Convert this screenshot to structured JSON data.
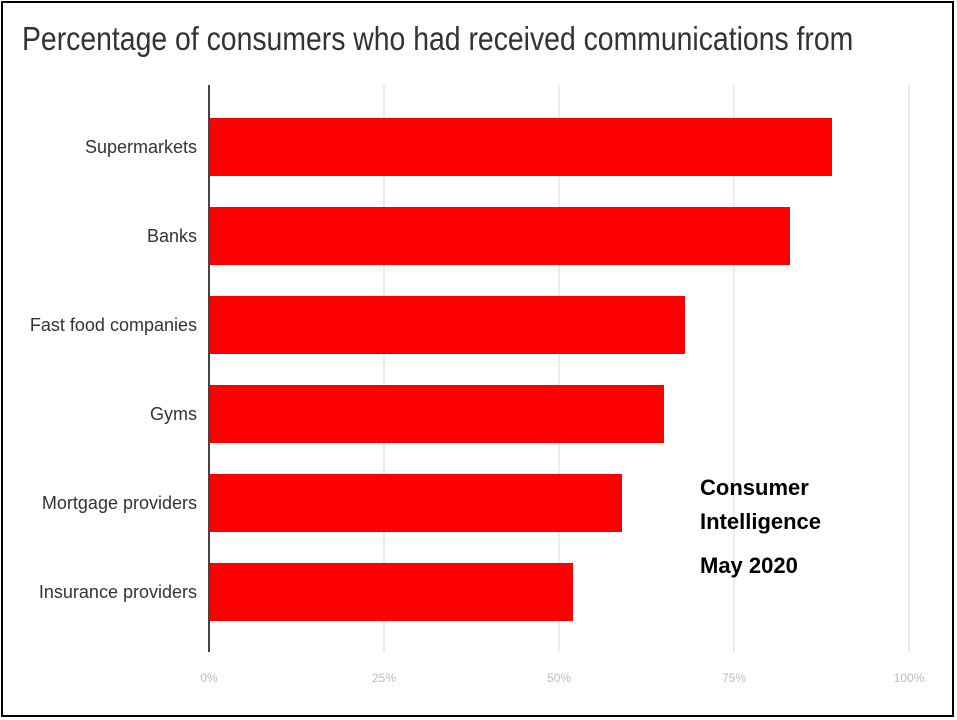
{
  "title": "Percentage of consumers who had received communications from",
  "annotation": {
    "line1": "Consumer",
    "line2": "Intelligence",
    "line3": "May 2020"
  },
  "colors": {
    "bar": "#ff0000",
    "grid": "#d9d9d9",
    "axis": "#444444"
  },
  "chart_data": {
    "type": "bar",
    "orientation": "horizontal",
    "title": "Percentage of consumers who had received communications from",
    "categories": [
      "Supermarkets",
      "Banks",
      "Fast food companies",
      "Gyms",
      "Mortgage providers",
      "Insurance providers"
    ],
    "values": [
      89,
      83,
      68,
      65,
      59,
      52
    ],
    "unit": "%",
    "xlim": [
      0,
      100
    ],
    "ticks": [
      0,
      25,
      50,
      75,
      100
    ],
    "tick_labels": [
      "0%",
      "25%",
      "50%",
      "75%",
      "100%"
    ],
    "grid": true,
    "legend": "none"
  }
}
